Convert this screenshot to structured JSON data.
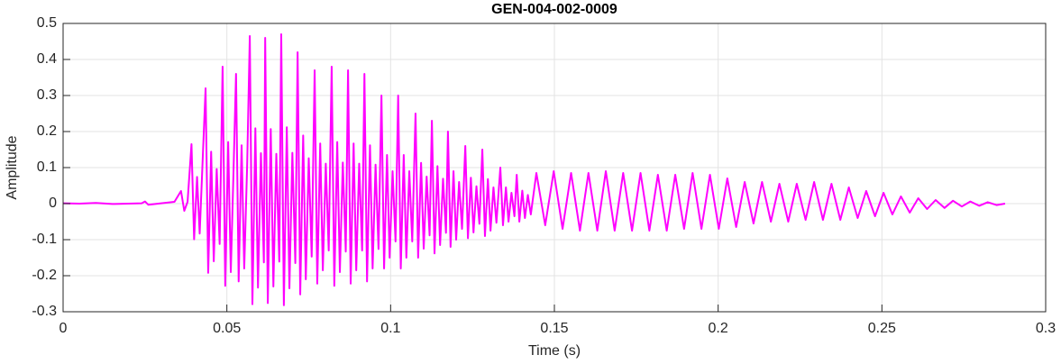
{
  "chart_data": {
    "type": "line",
    "title": "GEN-004-002-0009",
    "x_label": "Time (s)",
    "y_label": "Amplitude",
    "color": "#ff00ff",
    "grid": true,
    "xlim": [
      0,
      0.3
    ],
    "ylim": [
      -0.3,
      0.5
    ],
    "xticks": [
      0,
      0.05,
      0.1,
      0.15,
      0.2,
      0.25,
      0.3
    ],
    "yticks": [
      -0.3,
      -0.2,
      -0.1,
      0,
      0.1,
      0.2,
      0.3,
      0.4,
      0.5
    ],
    "x": [
      0,
      0.005,
      0.01,
      0.015,
      0.02,
      0.024,
      0.025,
      0.026,
      0.03,
      0.034,
      0.036,
      0.037,
      0.038,
      0.0392,
      0.04,
      0.0409,
      0.0417,
      0.0435,
      0.0443,
      0.0452,
      0.046,
      0.0469,
      0.0478,
      0.0487,
      0.0495,
      0.0504,
      0.0512,
      0.0521,
      0.0528,
      0.0536,
      0.0545,
      0.0553,
      0.0562,
      0.057,
      0.0578,
      0.0587,
      0.0595,
      0.0604,
      0.0613,
      0.0617,
      0.0625,
      0.0634,
      0.0642,
      0.0651,
      0.066,
      0.0666,
      0.0674,
      0.0683,
      0.0691,
      0.07,
      0.0709,
      0.0716,
      0.0724,
      0.0733,
      0.0741,
      0.075,
      0.0759,
      0.0768,
      0.0776,
      0.0785,
      0.0793,
      0.0802,
      0.0811,
      0.082,
      0.0828,
      0.0837,
      0.0845,
      0.0854,
      0.0863,
      0.087,
      0.0878,
      0.0887,
      0.0895,
      0.0904,
      0.0913,
      0.092,
      0.0928,
      0.0937,
      0.0945,
      0.0954,
      0.0963,
      0.0972,
      0.098,
      0.0989,
      0.0997,
      0.1006,
      0.1015,
      0.1023,
      0.1031,
      0.104,
      0.1048,
      0.1057,
      0.1066,
      0.1076,
      0.1084,
      0.1093,
      0.1101,
      0.111,
      0.1119,
      0.1126,
      0.1134,
      0.1143,
      0.1151,
      0.116,
      0.1169,
      0.1175,
      0.1183,
      0.1192,
      0.12,
      0.1209,
      0.1218,
      0.1228,
      0.1236,
      0.1245,
      0.1253,
      0.1262,
      0.1271,
      0.128,
      0.1288,
      0.1297,
      0.1305,
      0.1314,
      0.1323,
      0.1335,
      0.1343,
      0.1352,
      0.136,
      0.1369,
      0.1378,
      0.1385,
      0.1393,
      0.1402,
      0.141,
      0.1419,
      0.1428,
      0.1445,
      0.1472,
      0.1498,
      0.1525,
      0.1551,
      0.1578,
      0.1604,
      0.1631,
      0.1657,
      0.1684,
      0.171,
      0.1737,
      0.1763,
      0.179,
      0.1816,
      0.1843,
      0.1869,
      0.1896,
      0.1922,
      0.1949,
      0.1975,
      0.2002,
      0.2028,
      0.2055,
      0.2081,
      0.2108,
      0.2134,
      0.2161,
      0.2187,
      0.2214,
      0.224,
      0.2267,
      0.2293,
      0.232,
      0.2346,
      0.2373,
      0.2399,
      0.2426,
      0.2452,
      0.2479,
      0.2505,
      0.2532,
      0.2558,
      0.2585,
      0.2611,
      0.2638,
      0.2664,
      0.2691,
      0.2717,
      0.2744,
      0.277,
      0.2797,
      0.2823,
      0.285,
      0.2876
    ],
    "values": [
      0.001,
      0,
      0.002,
      -0.001,
      0,
      0.001,
      0.006,
      -0.003,
      0.001,
      0.005,
      0.035,
      -0.02,
      0.005,
      0.165,
      -0.099,
      0.074,
      -0.083,
      0.32,
      -0.192,
      0.144,
      -0.16,
      0.096,
      -0.112,
      0.38,
      -0.228,
      0.171,
      -0.19,
      0.114,
      0.36,
      -0.216,
      0.162,
      -0.18,
      0.108,
      0.465,
      -0.279,
      0.209,
      -0.233,
      0.14,
      -0.163,
      0.46,
      -0.276,
      0.207,
      -0.23,
      0.138,
      -0.161,
      0.47,
      -0.282,
      0.212,
      -0.235,
      0.141,
      -0.165,
      0.42,
      -0.252,
      0.189,
      -0.21,
      0.126,
      -0.147,
      0.37,
      -0.222,
      0.167,
      -0.185,
      0.111,
      -0.13,
      0.38,
      -0.228,
      0.171,
      -0.19,
      0.114,
      -0.133,
      0.37,
      -0.222,
      0.167,
      -0.185,
      0.111,
      -0.13,
      0.36,
      -0.216,
      0.162,
      -0.18,
      0.108,
      -0.126,
      0.3,
      -0.18,
      0.135,
      -0.15,
      0.09,
      -0.105,
      0.3,
      -0.18,
      0.135,
      -0.15,
      0.09,
      -0.105,
      0.25,
      -0.15,
      0.113,
      -0.125,
      0.075,
      -0.088,
      0.23,
      -0.138,
      0.104,
      -0.115,
      0.069,
      -0.081,
      0.2,
      -0.12,
      0.09,
      -0.1,
      0.06,
      -0.07,
      0.16,
      -0.096,
      0.072,
      -0.08,
      0.048,
      -0.056,
      0.15,
      -0.09,
      0.068,
      -0.075,
      0.045,
      -0.053,
      0.1,
      -0.06,
      0.045,
      -0.05,
      0.03,
      -0.035,
      0.08,
      -0.05,
      0.036,
      -0.04,
      0.024,
      -0.03,
      0.085,
      -0.06,
      0.09,
      -0.07,
      0.085,
      -0.075,
      0.085,
      -0.075,
      0.09,
      -0.075,
      0.085,
      -0.075,
      0.085,
      -0.075,
      0.08,
      -0.075,
      0.08,
      -0.07,
      0.085,
      -0.07,
      0.08,
      -0.07,
      0.07,
      -0.065,
      0.06,
      -0.055,
      0.06,
      -0.05,
      0.055,
      -0.05,
      0.055,
      -0.045,
      0.06,
      -0.045,
      0.055,
      -0.045,
      0.045,
      -0.04,
      0.035,
      -0.035,
      0.03,
      -0.03,
      0.02,
      -0.025,
      0.015,
      -0.015,
      0.01,
      -0.012,
      0.008,
      -0.008,
      0.006,
      -0.006,
      0.004,
      -0.004,
      0
    ]
  }
}
